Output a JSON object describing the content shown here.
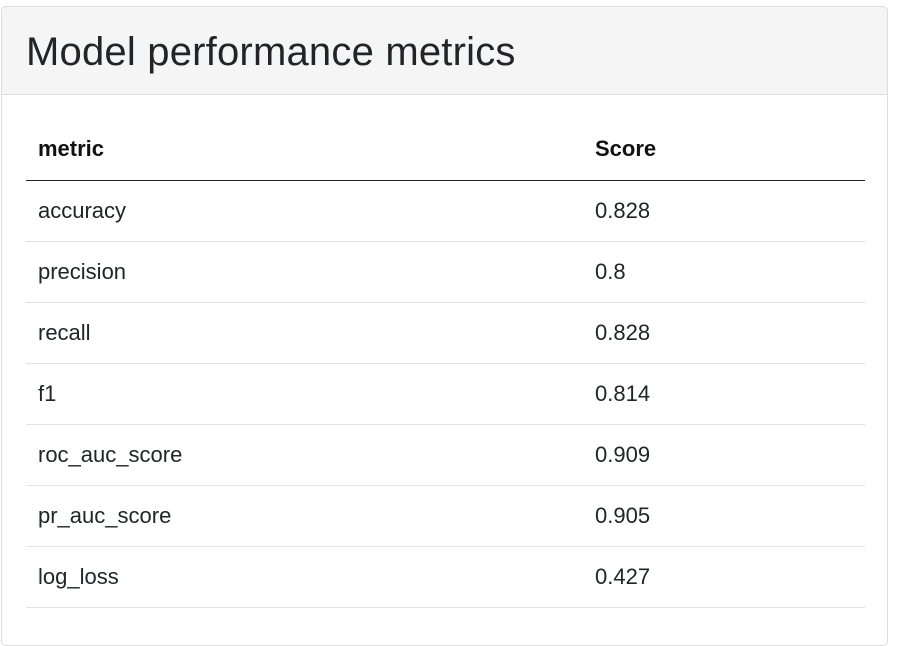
{
  "card": {
    "title": "Model performance metrics"
  },
  "table": {
    "headers": [
      "metric",
      "Score"
    ],
    "rows": [
      {
        "metric": "accuracy",
        "score": "0.828"
      },
      {
        "metric": "precision",
        "score": "0.8"
      },
      {
        "metric": "recall",
        "score": "0.828"
      },
      {
        "metric": "f1",
        "score": "0.814"
      },
      {
        "metric": "roc_auc_score",
        "score": "0.909"
      },
      {
        "metric": "pr_auc_score",
        "score": "0.905"
      },
      {
        "metric": "log_loss",
        "score": "0.427"
      }
    ]
  },
  "colors": {
    "header_bg": "#f5f5f5",
    "border": "#dcdcdc",
    "text": "#212529"
  }
}
